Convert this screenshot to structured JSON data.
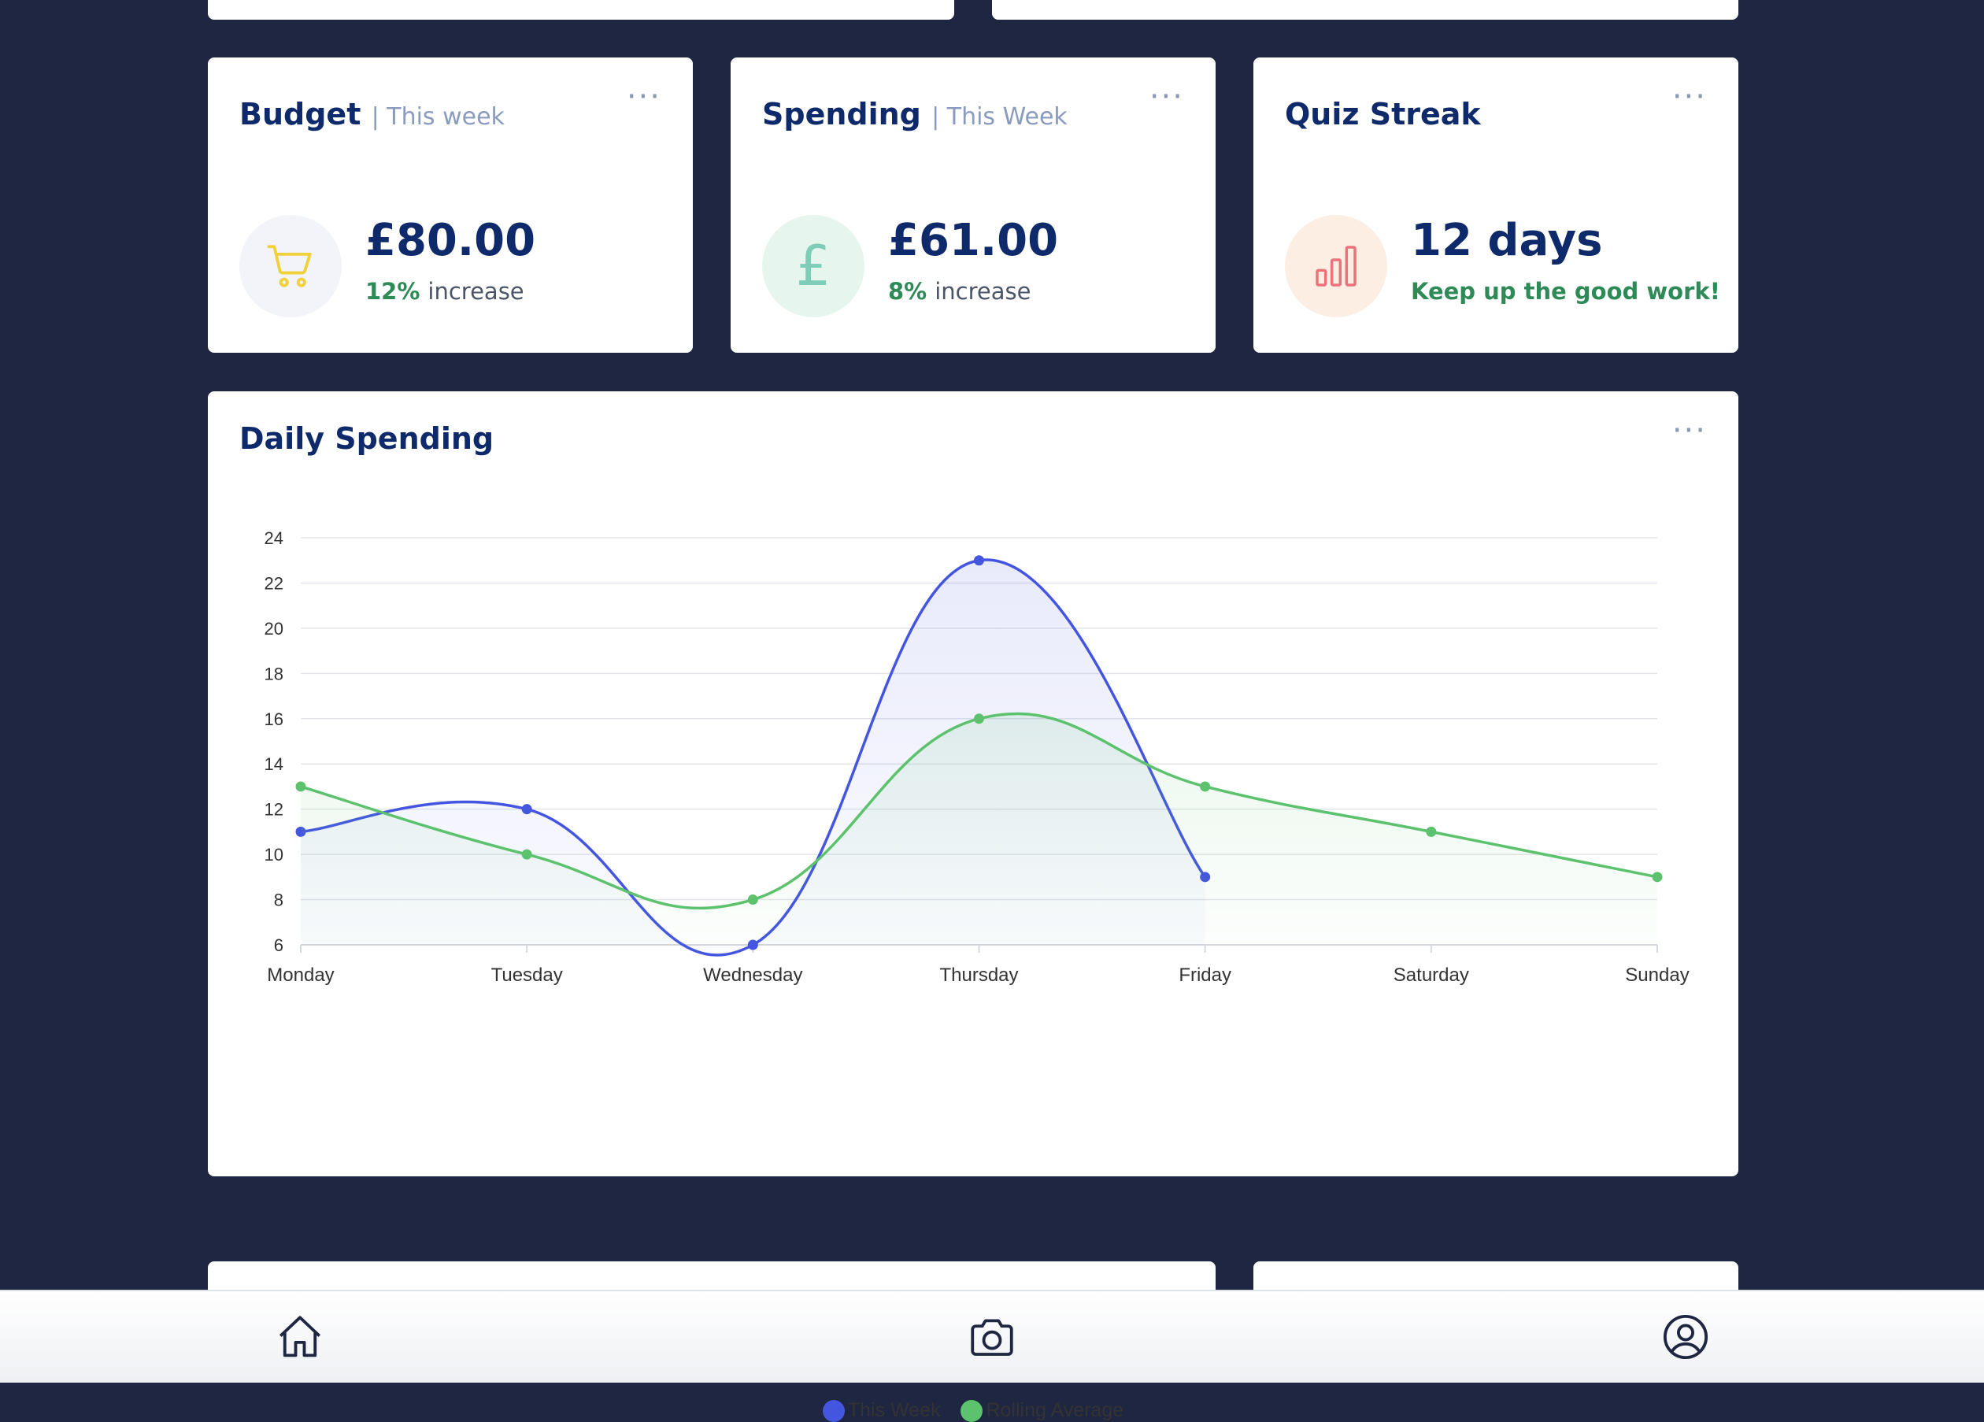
{
  "cards": {
    "budget": {
      "title": "Budget",
      "subtitle": "| This week",
      "value": "£80.00",
      "pct": "12%",
      "change": "increase",
      "icon": "shopping-cart-icon",
      "icon_bg": "#f3f4f9",
      "icon_color": "#f0d13a"
    },
    "spending": {
      "title": "Spending",
      "subtitle": "| This Week",
      "value": "£61.00",
      "pct": "8%",
      "change": "increase",
      "icon": "pound-icon",
      "icon_symbol": "£",
      "icon_bg": "#e6f6ee",
      "icon_color": "#7ecdb8"
    },
    "quiz": {
      "title": "Quiz Streak",
      "value": "12 days",
      "message": "Keep up the good work!",
      "icon": "bar-chart-icon",
      "icon_bg": "#fdeee3",
      "icon_color": "#e8737a"
    }
  },
  "daily_spending": {
    "title": "Daily Spending"
  },
  "chart_data": {
    "type": "line",
    "title": "Daily Spending",
    "categories": [
      "Monday",
      "Tuesday",
      "Wednesday",
      "Thursday",
      "Friday",
      "Saturday",
      "Sunday"
    ],
    "ylim": [
      6,
      24
    ],
    "yticks": [
      6,
      8,
      10,
      12,
      14,
      16,
      18,
      20,
      22,
      24
    ],
    "grid": true,
    "legend": "bottom",
    "series": [
      {
        "name": "This Week",
        "color": "#4455e0",
        "values": [
          11,
          12,
          6,
          23,
          9,
          null,
          null
        ]
      },
      {
        "name": "Rolling Average",
        "color": "#5cc26e",
        "values": [
          13,
          10,
          8,
          16,
          13,
          11,
          9
        ]
      }
    ]
  },
  "nav": {
    "items": [
      "home-icon",
      "camera-icon",
      "profile-icon"
    ]
  },
  "colors": {
    "background": "#1e2642",
    "accent": "#0f2a6b",
    "positive": "#2e8b57"
  }
}
